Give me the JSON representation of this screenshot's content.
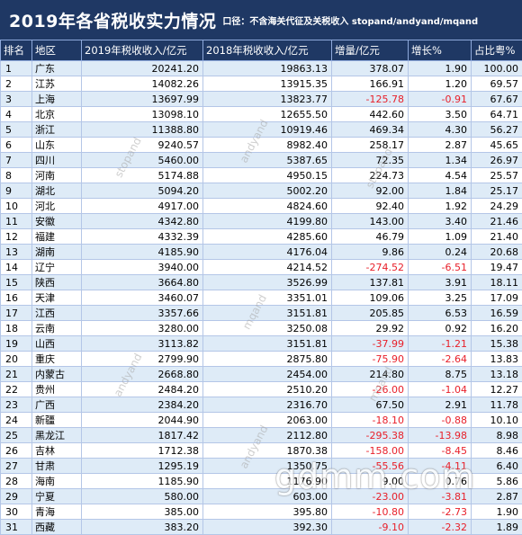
{
  "title": "2019年各省税收实力情况",
  "note": "口径：不含海关代征及关税收入  stopand/andyand/mqand",
  "columns": [
    "排名",
    "地区",
    "2019年税收收入/亿元",
    "2018年税收收入/亿元",
    "增量/亿元",
    "增长%",
    "占比粤%"
  ],
  "rows": [
    [
      "1",
      "广东",
      "20241.20",
      "19863.13",
      "378.07",
      "1.90",
      "100.00"
    ],
    [
      "2",
      "江苏",
      "14082.26",
      "13915.35",
      "166.91",
      "1.20",
      "69.57"
    ],
    [
      "3",
      "上海",
      "13697.99",
      "13823.77",
      "-125.78",
      "-0.91",
      "67.67"
    ],
    [
      "4",
      "北京",
      "13098.10",
      "12655.50",
      "442.60",
      "3.50",
      "64.71"
    ],
    [
      "5",
      "浙江",
      "11388.80",
      "10919.46",
      "469.34",
      "4.30",
      "56.27"
    ],
    [
      "6",
      "山东",
      "9240.57",
      "8982.40",
      "258.17",
      "2.87",
      "45.65"
    ],
    [
      "7",
      "四川",
      "5460.00",
      "5387.65",
      "72.35",
      "1.34",
      "26.97"
    ],
    [
      "8",
      "河南",
      "5174.88",
      "4950.15",
      "224.73",
      "4.54",
      "25.57"
    ],
    [
      "9",
      "湖北",
      "5094.20",
      "5002.20",
      "92.00",
      "1.84",
      "25.17"
    ],
    [
      "10",
      "河北",
      "4917.00",
      "4824.60",
      "92.40",
      "1.92",
      "24.29"
    ],
    [
      "11",
      "安徽",
      "4342.80",
      "4199.80",
      "143.00",
      "3.40",
      "21.46"
    ],
    [
      "12",
      "福建",
      "4332.39",
      "4285.60",
      "46.79",
      "1.09",
      "21.40"
    ],
    [
      "13",
      "湖南",
      "4185.90",
      "4176.04",
      "9.86",
      "0.24",
      "20.68"
    ],
    [
      "14",
      "辽宁",
      "3940.00",
      "4214.52",
      "-274.52",
      "-6.51",
      "19.47"
    ],
    [
      "15",
      "陕西",
      "3664.80",
      "3526.99",
      "137.81",
      "3.91",
      "18.11"
    ],
    [
      "16",
      "天津",
      "3460.07",
      "3351.01",
      "109.06",
      "3.25",
      "17.09"
    ],
    [
      "17",
      "江西",
      "3357.66",
      "3151.81",
      "205.85",
      "6.53",
      "16.59"
    ],
    [
      "18",
      "云南",
      "3280.00",
      "3250.08",
      "29.92",
      "0.92",
      "16.20"
    ],
    [
      "19",
      "山西",
      "3113.82",
      "3151.81",
      "-37.99",
      "-1.21",
      "15.38"
    ],
    [
      "20",
      "重庆",
      "2799.90",
      "2875.80",
      "-75.90",
      "-2.64",
      "13.83"
    ],
    [
      "21",
      "内蒙古",
      "2668.80",
      "2454.00",
      "214.80",
      "8.75",
      "13.18"
    ],
    [
      "22",
      "贵州",
      "2484.20",
      "2510.20",
      "-26.00",
      "-1.04",
      "12.27"
    ],
    [
      "23",
      "广西",
      "2384.20",
      "2316.70",
      "67.50",
      "2.91",
      "11.78"
    ],
    [
      "24",
      "新疆",
      "2044.90",
      "2063.00",
      "-18.10",
      "-0.88",
      "10.10"
    ],
    [
      "25",
      "黑龙江",
      "1817.42",
      "2112.80",
      "-295.38",
      "-13.98",
      "8.98"
    ],
    [
      "26",
      "吉林",
      "1712.38",
      "1870.38",
      "-158.00",
      "-8.45",
      "8.46"
    ],
    [
      "27",
      "甘肃",
      "1295.19",
      "1350.75",
      "-55.56",
      "-4.11",
      "6.40"
    ],
    [
      "28",
      "海南",
      "1185.90",
      "1176.90",
      "9.00",
      "0.76",
      "5.86"
    ],
    [
      "29",
      "宁夏",
      "580.00",
      "603.00",
      "-23.00",
      "-3.81",
      "2.87"
    ],
    [
      "30",
      "青海",
      "385.00",
      "395.80",
      "-10.80",
      "-2.73",
      "1.90"
    ],
    [
      "31",
      "西藏",
      "383.20",
      "392.30",
      "-9.10",
      "-2.32",
      "1.89"
    ]
  ],
  "watermarks": [
    "stopand",
    "andyand",
    "mqand"
  ],
  "site_watermark": "gdmm.com",
  "colors": {
    "header_bg": "#1f3864",
    "stripe": "#deebf7",
    "negative": "#e8202a",
    "grid": "#b4c6e7"
  }
}
